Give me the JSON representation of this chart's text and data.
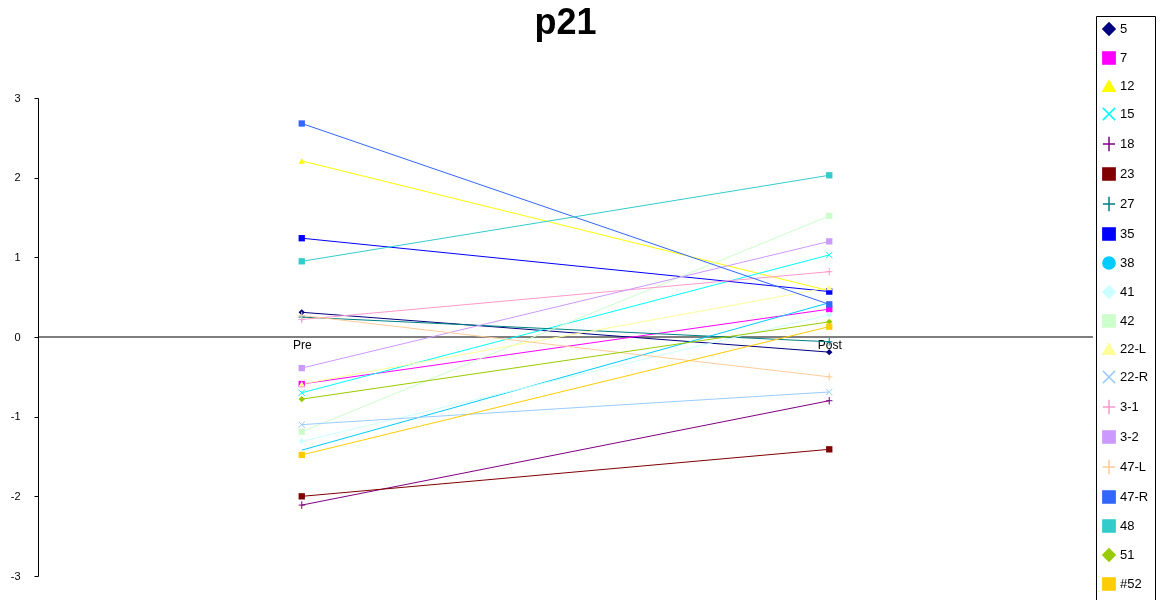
{
  "chart_data": {
    "type": "line",
    "title": "p21",
    "categories": [
      "Pre",
      "Post"
    ],
    "ylim": [
      -3,
      3
    ],
    "yticks": [
      -3,
      -2,
      -1,
      0,
      1,
      2,
      3
    ],
    "grid": false,
    "legend": "right",
    "series": [
      {
        "name": "5",
        "color": "#000080",
        "marker": "diamond",
        "values": [
          0.31,
          -0.19
        ]
      },
      {
        "name": "7",
        "color": "#ff00ff",
        "marker": "square",
        "values": [
          -0.59,
          0.35
        ]
      },
      {
        "name": "12",
        "color": "#ffff00",
        "marker": "triangle",
        "values": [
          2.21,
          0.58
        ]
      },
      {
        "name": "15",
        "color": "#00ffff",
        "marker": "x",
        "values": [
          -0.7,
          1.03
        ]
      },
      {
        "name": "18",
        "color": "#800080",
        "marker": "cross",
        "values": [
          -2.11,
          -0.8
        ]
      },
      {
        "name": "23",
        "color": "#800000",
        "marker": "square",
        "values": [
          -2.0,
          -1.41
        ]
      },
      {
        "name": "27",
        "color": "#008080",
        "marker": "cross",
        "values": [
          0.25,
          -0.06
        ]
      },
      {
        "name": "35",
        "color": "#0000ff",
        "marker": "square",
        "values": [
          1.24,
          0.57
        ]
      },
      {
        "name": "38",
        "color": "#00ccff",
        "marker": "none",
        "values": [
          -1.42,
          0.43
        ]
      },
      {
        "name": "41",
        "color": "#ccffff",
        "marker": "diamond",
        "values": [
          -1.31,
          0.28
        ]
      },
      {
        "name": "42",
        "color": "#ccffcc",
        "marker": "square",
        "values": [
          -1.19,
          1.52
        ]
      },
      {
        "name": "22-L",
        "color": "#ffff99",
        "marker": "triangle",
        "values": [
          -0.59,
          0.62
        ]
      },
      {
        "name": "22-R",
        "color": "#99ccff",
        "marker": "x",
        "values": [
          -1.1,
          -0.69
        ]
      },
      {
        "name": "3-1",
        "color": "#ff99cc",
        "marker": "cross",
        "values": [
          0.22,
          0.82
        ]
      },
      {
        "name": "3-2",
        "color": "#cc99ff",
        "marker": "square",
        "values": [
          -0.39,
          1.2
        ]
      },
      {
        "name": "47-L",
        "color": "#ffcc99",
        "marker": "cross",
        "values": [
          0.27,
          -0.5
        ]
      },
      {
        "name": "47-R",
        "color": "#3366ff",
        "marker": "square",
        "values": [
          2.68,
          0.41
        ]
      },
      {
        "name": "48",
        "color": "#33cccc",
        "marker": "square",
        "values": [
          0.95,
          2.03
        ]
      },
      {
        "name": "51",
        "color": "#99cc00",
        "marker": "diamond",
        "values": [
          -0.78,
          0.19
        ]
      },
      {
        "name": "#52",
        "color": "#ffcc00",
        "marker": "square",
        "values": [
          -1.48,
          0.13
        ]
      }
    ]
  }
}
